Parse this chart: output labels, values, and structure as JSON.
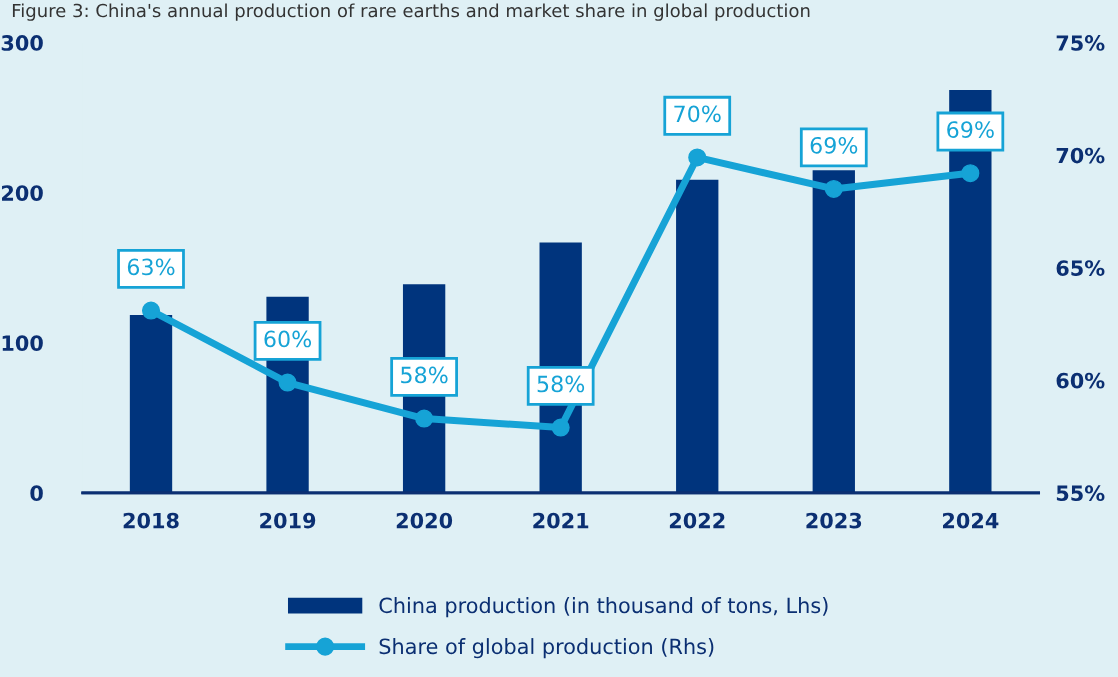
{
  "chart_data": {
    "type": "bar",
    "title": "Figure 3: China's annual production of rare earths and market share in global production",
    "categories": [
      "2018",
      "2019",
      "2020",
      "2021",
      "2022",
      "2023",
      "2024"
    ],
    "series": [
      {
        "name": "China production (in thousand of tons, Lhs)",
        "color": "#00347d",
        "values": [
          118.5,
          130.7,
          139,
          166.8,
          208.6,
          215,
          268.5
        ]
      },
      {
        "name": "Share of global production (Rhs)",
        "type": "line",
        "axis": "y2",
        "color": "#16a3d6",
        "marker": "circle",
        "values": [
          63.1,
          59.9,
          58.3,
          57.9,
          69.9,
          68.5,
          69.2
        ],
        "value_labels": [
          "63%",
          "60%",
          "58%",
          "58%",
          "70%",
          "69%",
          "69%"
        ]
      }
    ],
    "ylim": [
      0,
      300
    ],
    "yticks": [
      0,
      100,
      200,
      300
    ],
    "y2lim": [
      55,
      75
    ],
    "y2ticks": [
      {
        "value": 55,
        "label": "55%"
      },
      {
        "value": 60,
        "label": "60%"
      },
      {
        "value": 65,
        "label": "65%"
      },
      {
        "value": 70,
        "label": "70%"
      },
      {
        "value": 75,
        "label": "75%"
      }
    ],
    "grid": false,
    "legend": "bottom"
  }
}
